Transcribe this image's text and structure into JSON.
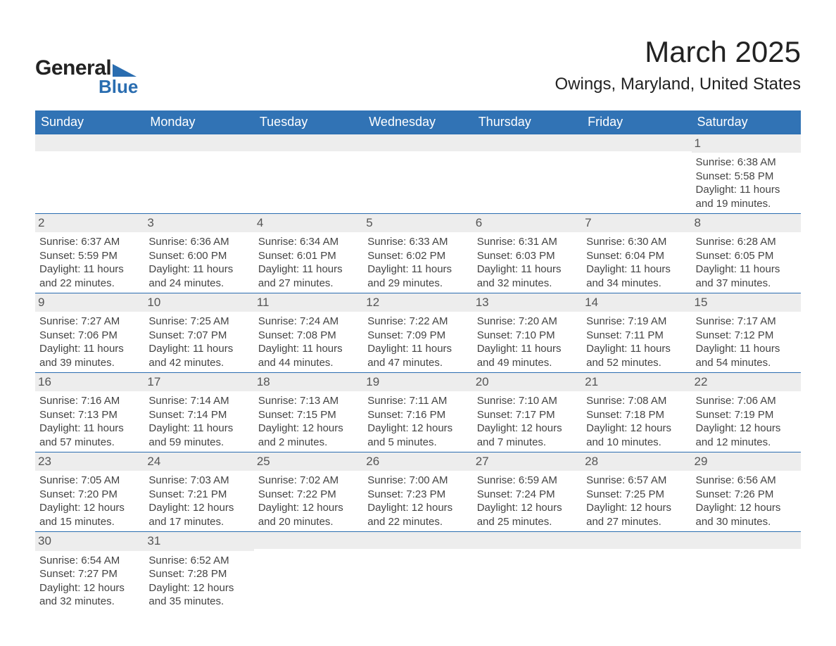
{
  "brand": {
    "name": "General",
    "sub": "Blue",
    "accent": "#2a6db0"
  },
  "title": "March 2025",
  "location": "Owings, Maryland, United States",
  "colors": {
    "header_bg": "#3173b5",
    "header_fg": "#ffffff",
    "row_stripe": "#ededed",
    "week_border": "#2a6db0",
    "text": "#444444"
  },
  "weekdays": [
    "Sunday",
    "Monday",
    "Tuesday",
    "Wednesday",
    "Thursday",
    "Friday",
    "Saturday"
  ],
  "weeks": [
    [
      null,
      null,
      null,
      null,
      null,
      null,
      {
        "n": "1",
        "sr": "Sunrise: 6:38 AM",
        "ss": "Sunset: 5:58 PM",
        "dl": "Daylight: 11 hours and 19 minutes."
      }
    ],
    [
      {
        "n": "2",
        "sr": "Sunrise: 6:37 AM",
        "ss": "Sunset: 5:59 PM",
        "dl": "Daylight: 11 hours and 22 minutes."
      },
      {
        "n": "3",
        "sr": "Sunrise: 6:36 AM",
        "ss": "Sunset: 6:00 PM",
        "dl": "Daylight: 11 hours and 24 minutes."
      },
      {
        "n": "4",
        "sr": "Sunrise: 6:34 AM",
        "ss": "Sunset: 6:01 PM",
        "dl": "Daylight: 11 hours and 27 minutes."
      },
      {
        "n": "5",
        "sr": "Sunrise: 6:33 AM",
        "ss": "Sunset: 6:02 PM",
        "dl": "Daylight: 11 hours and 29 minutes."
      },
      {
        "n": "6",
        "sr": "Sunrise: 6:31 AM",
        "ss": "Sunset: 6:03 PM",
        "dl": "Daylight: 11 hours and 32 minutes."
      },
      {
        "n": "7",
        "sr": "Sunrise: 6:30 AM",
        "ss": "Sunset: 6:04 PM",
        "dl": "Daylight: 11 hours and 34 minutes."
      },
      {
        "n": "8",
        "sr": "Sunrise: 6:28 AM",
        "ss": "Sunset: 6:05 PM",
        "dl": "Daylight: 11 hours and 37 minutes."
      }
    ],
    [
      {
        "n": "9",
        "sr": "Sunrise: 7:27 AM",
        "ss": "Sunset: 7:06 PM",
        "dl": "Daylight: 11 hours and 39 minutes."
      },
      {
        "n": "10",
        "sr": "Sunrise: 7:25 AM",
        "ss": "Sunset: 7:07 PM",
        "dl": "Daylight: 11 hours and 42 minutes."
      },
      {
        "n": "11",
        "sr": "Sunrise: 7:24 AM",
        "ss": "Sunset: 7:08 PM",
        "dl": "Daylight: 11 hours and 44 minutes."
      },
      {
        "n": "12",
        "sr": "Sunrise: 7:22 AM",
        "ss": "Sunset: 7:09 PM",
        "dl": "Daylight: 11 hours and 47 minutes."
      },
      {
        "n": "13",
        "sr": "Sunrise: 7:20 AM",
        "ss": "Sunset: 7:10 PM",
        "dl": "Daylight: 11 hours and 49 minutes."
      },
      {
        "n": "14",
        "sr": "Sunrise: 7:19 AM",
        "ss": "Sunset: 7:11 PM",
        "dl": "Daylight: 11 hours and 52 minutes."
      },
      {
        "n": "15",
        "sr": "Sunrise: 7:17 AM",
        "ss": "Sunset: 7:12 PM",
        "dl": "Daylight: 11 hours and 54 minutes."
      }
    ],
    [
      {
        "n": "16",
        "sr": "Sunrise: 7:16 AM",
        "ss": "Sunset: 7:13 PM",
        "dl": "Daylight: 11 hours and 57 minutes."
      },
      {
        "n": "17",
        "sr": "Sunrise: 7:14 AM",
        "ss": "Sunset: 7:14 PM",
        "dl": "Daylight: 11 hours and 59 minutes."
      },
      {
        "n": "18",
        "sr": "Sunrise: 7:13 AM",
        "ss": "Sunset: 7:15 PM",
        "dl": "Daylight: 12 hours and 2 minutes."
      },
      {
        "n": "19",
        "sr": "Sunrise: 7:11 AM",
        "ss": "Sunset: 7:16 PM",
        "dl": "Daylight: 12 hours and 5 minutes."
      },
      {
        "n": "20",
        "sr": "Sunrise: 7:10 AM",
        "ss": "Sunset: 7:17 PM",
        "dl": "Daylight: 12 hours and 7 minutes."
      },
      {
        "n": "21",
        "sr": "Sunrise: 7:08 AM",
        "ss": "Sunset: 7:18 PM",
        "dl": "Daylight: 12 hours and 10 minutes."
      },
      {
        "n": "22",
        "sr": "Sunrise: 7:06 AM",
        "ss": "Sunset: 7:19 PM",
        "dl": "Daylight: 12 hours and 12 minutes."
      }
    ],
    [
      {
        "n": "23",
        "sr": "Sunrise: 7:05 AM",
        "ss": "Sunset: 7:20 PM",
        "dl": "Daylight: 12 hours and 15 minutes."
      },
      {
        "n": "24",
        "sr": "Sunrise: 7:03 AM",
        "ss": "Sunset: 7:21 PM",
        "dl": "Daylight: 12 hours and 17 minutes."
      },
      {
        "n": "25",
        "sr": "Sunrise: 7:02 AM",
        "ss": "Sunset: 7:22 PM",
        "dl": "Daylight: 12 hours and 20 minutes."
      },
      {
        "n": "26",
        "sr": "Sunrise: 7:00 AM",
        "ss": "Sunset: 7:23 PM",
        "dl": "Daylight: 12 hours and 22 minutes."
      },
      {
        "n": "27",
        "sr": "Sunrise: 6:59 AM",
        "ss": "Sunset: 7:24 PM",
        "dl": "Daylight: 12 hours and 25 minutes."
      },
      {
        "n": "28",
        "sr": "Sunrise: 6:57 AM",
        "ss": "Sunset: 7:25 PM",
        "dl": "Daylight: 12 hours and 27 minutes."
      },
      {
        "n": "29",
        "sr": "Sunrise: 6:56 AM",
        "ss": "Sunset: 7:26 PM",
        "dl": "Daylight: 12 hours and 30 minutes."
      }
    ],
    [
      {
        "n": "30",
        "sr": "Sunrise: 6:54 AM",
        "ss": "Sunset: 7:27 PM",
        "dl": "Daylight: 12 hours and 32 minutes."
      },
      {
        "n": "31",
        "sr": "Sunrise: 6:52 AM",
        "ss": "Sunset: 7:28 PM",
        "dl": "Daylight: 12 hours and 35 minutes."
      },
      null,
      null,
      null,
      null,
      null
    ]
  ]
}
